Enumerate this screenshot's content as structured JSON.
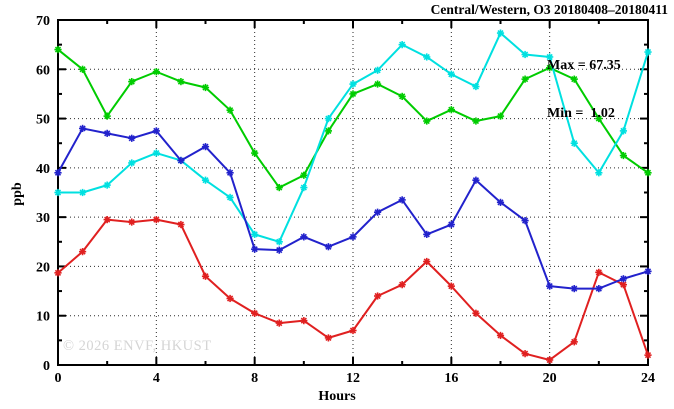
{
  "title": "Central/Western, O3 20180408–20180411",
  "stats": {
    "max_label": "Max = 67.35",
    "min_label": "Min =  1.02"
  },
  "watermark": "© 2026 ENVF, HKUST",
  "chart_data": {
    "type": "line",
    "title": "Central/Western, O3 20180408–20180411",
    "xlabel": "Hours",
    "ylabel": "ppb",
    "xlim": [
      0,
      24
    ],
    "ylim": [
      0,
      70
    ],
    "xticks": [
      0,
      4,
      8,
      12,
      16,
      20,
      24
    ],
    "yticks": [
      0,
      10,
      20,
      30,
      40,
      50,
      60,
      70
    ],
    "grid": true,
    "legend": false,
    "marker": "star",
    "annotations": [
      "Max = 67.35",
      "Min =  1.02"
    ],
    "x": [
      0,
      1,
      2,
      3,
      4,
      5,
      6,
      7,
      8,
      9,
      10,
      11,
      12,
      13,
      14,
      15,
      16,
      17,
      18,
      19,
      20,
      21,
      22,
      23,
      24
    ],
    "series": [
      {
        "name": "green",
        "color": "#00cc00",
        "values": [
          64,
          60,
          50.5,
          57.5,
          59.5,
          57.5,
          56.3,
          51.7,
          43,
          36,
          38.5,
          47.5,
          55,
          57,
          54.5,
          49.5,
          51.8,
          49.5,
          50.5,
          58,
          60.3,
          58,
          50,
          42.5,
          39
        ]
      },
      {
        "name": "cyan",
        "color": "#00e0e0",
        "values": [
          35,
          35,
          36.5,
          41,
          43,
          41.5,
          37.5,
          34,
          26.5,
          25,
          36,
          50,
          57,
          59.8,
          65,
          62.5,
          59,
          56.5,
          67.35,
          63,
          62.5,
          45,
          39,
          47.5,
          63.5
        ]
      },
      {
        "name": "red",
        "color": "#e02020",
        "values": [
          18.7,
          23,
          29.5,
          29,
          29.5,
          28.5,
          18,
          13.5,
          10.5,
          8.5,
          9,
          5.5,
          7,
          14,
          16.3,
          21,
          16,
          10.5,
          6,
          2.3,
          1.02,
          4.7,
          18.8,
          16.3,
          2
        ]
      },
      {
        "name": "blue",
        "color": "#2222cc",
        "values": [
          39,
          48,
          47,
          46,
          47.5,
          41.5,
          44.3,
          39,
          23.5,
          23.3,
          26,
          24,
          26,
          31,
          33.5,
          26.5,
          28.5,
          37.5,
          33,
          29.3,
          16,
          15.5,
          15.5,
          17.5,
          19
        ]
      }
    ]
  }
}
